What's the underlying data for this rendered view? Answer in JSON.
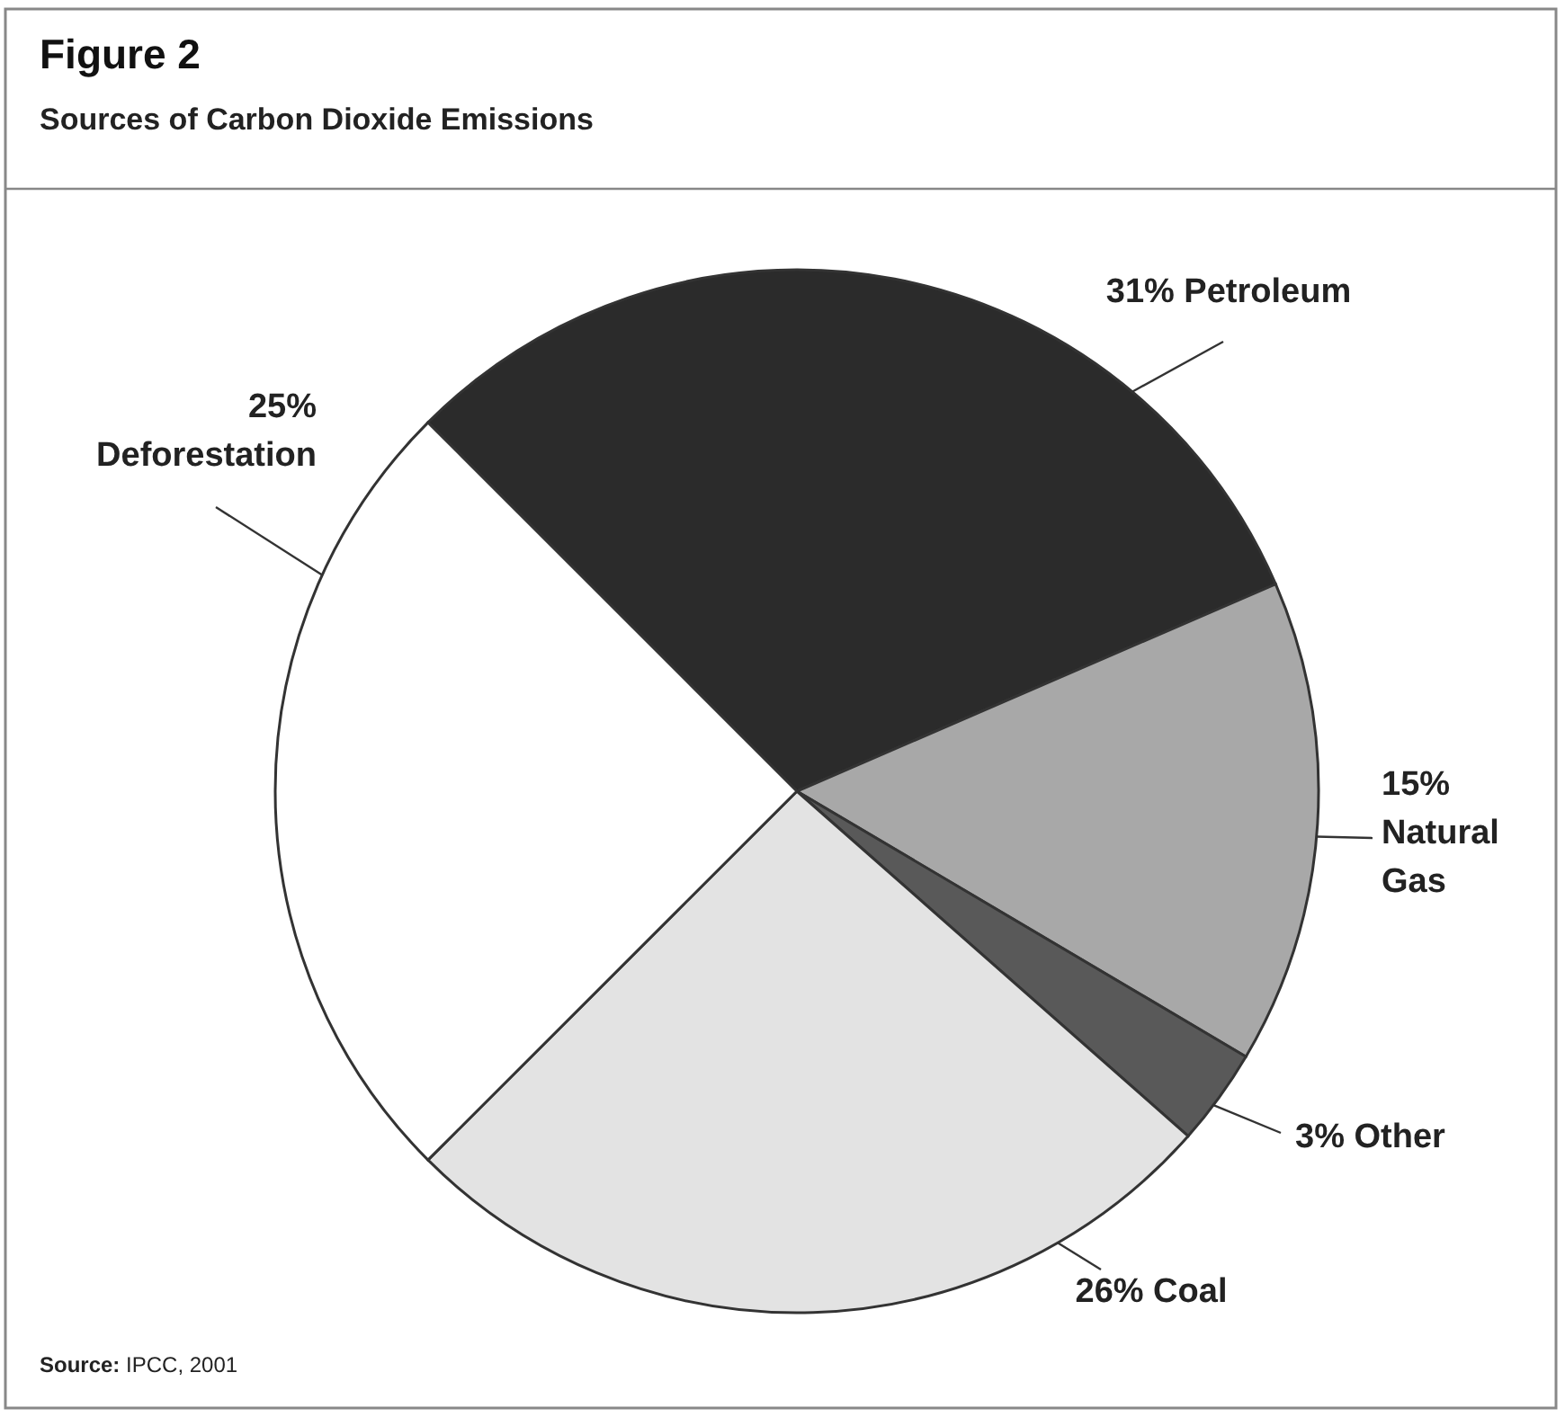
{
  "chart_data": {
    "type": "pie",
    "title": "Figure 2",
    "subtitle": "Sources of Carbon Dioxide Emissions",
    "categories": [
      "Petroleum",
      "Natural Gas",
      "Other",
      "Coal",
      "Deforestation"
    ],
    "values": [
      31,
      15,
      3,
      26,
      25
    ],
    "value_labels": [
      "31%",
      "15%",
      "3%",
      "26%",
      "25%"
    ],
    "colors": [
      "#2b2b2b",
      "#a8a8a8",
      "#595959",
      "#e3e3e3",
      "#ffffff"
    ],
    "annotations": [
      "Source: IPCC, 2001"
    ]
  }
}
